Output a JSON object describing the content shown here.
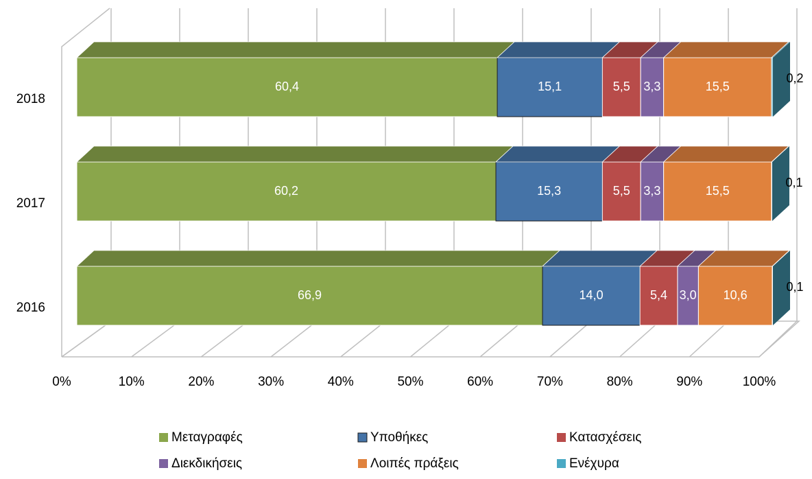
{
  "chart_data": {
    "type": "bar",
    "orientation": "horizontal",
    "stacked": true,
    "three_d": true,
    "categories": [
      "2016",
      "2017",
      "2018"
    ],
    "series": [
      {
        "name": "Μεταγραφές",
        "color": "#8aa64b",
        "values": [
          66.9,
          60.2,
          60.4
        ],
        "value_labels": [
          "66,9",
          "60,2",
          "60,4"
        ]
      },
      {
        "name": "Υποθήκες",
        "color": "#4573a7",
        "values": [
          14.0,
          15.3,
          15.1
        ],
        "value_labels": [
          "14,0",
          "15,3",
          "15,1"
        ]
      },
      {
        "name": "Κατασχέσεις",
        "color": "#b84c4a",
        "values": [
          5.4,
          5.5,
          5.5
        ],
        "value_labels": [
          "5,4",
          "5,5",
          "5,5"
        ]
      },
      {
        "name": "Διεκδικήσεις",
        "color": "#7d62a0",
        "values": [
          3.0,
          3.3,
          3.3
        ],
        "value_labels": [
          "3,0",
          "3,3",
          "3,3"
        ]
      },
      {
        "name": "Λοιπές πράξεις",
        "color": "#e0823d",
        "values": [
          10.6,
          15.5,
          15.5
        ],
        "value_labels": [
          "10,6",
          "15,5",
          "15,5"
        ]
      },
      {
        "name": "Ενέχυρα",
        "color": "#4aa9c4",
        "values": [
          0.1,
          0.1,
          0.2
        ],
        "value_labels": [
          "0,1",
          "0,1",
          "0,2"
        ]
      }
    ],
    "xlim": [
      0,
      100
    ],
    "xticks": [
      {
        "value": 0,
        "label": "0%"
      },
      {
        "value": 10,
        "label": "10%"
      },
      {
        "value": 20,
        "label": "20%"
      },
      {
        "value": 30,
        "label": "30%"
      },
      {
        "value": 40,
        "label": "40%"
      },
      {
        "value": 50,
        "label": "50%"
      },
      {
        "value": 60,
        "label": "60%"
      },
      {
        "value": 70,
        "label": "70%"
      },
      {
        "value": 80,
        "label": "80%"
      },
      {
        "value": 90,
        "label": "90%"
      },
      {
        "value": 100,
        "label": "100%"
      }
    ],
    "grid": true,
    "legend": "bottom"
  }
}
